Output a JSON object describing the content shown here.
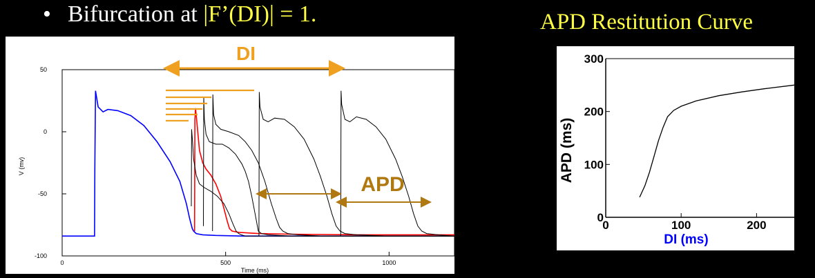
{
  "slide": {
    "bullet_glyph": "•",
    "bullet_prefix": "Bifurcation at ",
    "bullet_highlight": "|F’(DI)| = 1.",
    "right_title": "APD Restitution Curve",
    "highlight_color": "#ffff44"
  },
  "chart_data": [
    {
      "type": "line",
      "xlabel": "Time (ms)",
      "ylabel": "V (mv)",
      "xlim": [
        0,
        1200
      ],
      "ylim": [
        -100,
        50
      ],
      "xticks": [
        0,
        500,
        1000
      ],
      "yticks": [
        50,
        0,
        -50,
        -100
      ],
      "annotations": {
        "di_label": "DI",
        "apd_label": "APD",
        "di_color": "#f0a020",
        "apd_color": "#b07810"
      },
      "series": [
        {
          "color": "#0000ff",
          "x": [
            0,
            99,
            100,
            102,
            110,
            125,
            140,
            170,
            210,
            250,
            290,
            330,
            360,
            380,
            390,
            398,
            402,
            410,
            430,
            470,
            550,
            650,
            800,
            1000,
            1200
          ],
          "y": [
            -84,
            -84,
            -30,
            33,
            20,
            16,
            18,
            17,
            13,
            5,
            -8,
            -24,
            -40,
            -58,
            -70,
            -78,
            -80,
            -82,
            -83,
            -83.5,
            -84,
            -84,
            -84,
            -84,
            -84
          ]
        },
        {
          "color": "#ff0000",
          "x": [
            405,
            406,
            408,
            412,
            420,
            430,
            440,
            455,
            470,
            485,
            495,
            505,
            512,
            520,
            540,
            600,
            700,
            900,
            1200
          ],
          "y": [
            -80,
            10,
            19,
            8,
            -15,
            -25,
            -30,
            -35,
            -42,
            -52,
            -62,
            -72,
            -78,
            -80,
            -81,
            -82,
            -82.5,
            -83,
            -83
          ]
        },
        {
          "color": "#000000",
          "x": [
            395,
            396,
            398,
            402,
            410,
            420,
            435,
            455,
            475,
            495,
            510,
            522,
            532,
            540,
            548,
            560,
            600,
            700,
            900,
            1200
          ],
          "y": [
            -60,
            2,
            -5,
            -22,
            -35,
            -42,
            -45,
            -48,
            -52,
            -58,
            -66,
            -74,
            -80,
            -82,
            -83,
            -84,
            -84,
            -84,
            -84,
            -84
          ]
        },
        {
          "color": "#000000",
          "x": [
            432,
            433,
            435,
            440,
            450,
            470,
            490,
            510,
            530,
            550,
            560,
            570,
            580,
            590,
            600,
            610,
            630,
            700,
            900,
            1200
          ],
          "y": [
            -76,
            28,
            10,
            -2,
            -8,
            -10,
            -10,
            -13,
            -18,
            -26,
            -32,
            -40,
            -52,
            -66,
            -80,
            -82,
            -83,
            -84,
            -84,
            -84
          ]
        },
        {
          "color": "#000000",
          "x": [
            460,
            461,
            463,
            470,
            485,
            510,
            540,
            560,
            580,
            600,
            620,
            640,
            655,
            665,
            675,
            690,
            720,
            800,
            1000,
            1200
          ],
          "y": [
            -80,
            30,
            14,
            6,
            2,
            0,
            -3,
            -8,
            -15,
            -25,
            -40,
            -58,
            -70,
            -77,
            -80,
            -82,
            -83,
            -84,
            -84,
            -84
          ]
        },
        {
          "color": "#000000",
          "x": [
            602,
            603,
            605,
            615,
            630,
            650,
            680,
            710,
            740,
            770,
            790,
            810,
            825,
            838,
            850,
            865,
            900,
            1000,
            1200
          ],
          "y": [
            -84,
            32,
            20,
            10,
            8,
            11,
            10,
            4,
            -6,
            -22,
            -36,
            -52,
            -66,
            -76,
            -80,
            -82,
            -83,
            -84,
            -84
          ]
        },
        {
          "color": "#000000",
          "x": [
            852,
            853,
            855,
            865,
            880,
            900,
            930,
            960,
            990,
            1020,
            1040,
            1060,
            1075,
            1088,
            1100,
            1115,
            1150,
            1200
          ],
          "y": [
            -84,
            33,
            22,
            10,
            8,
            12,
            10,
            4,
            -6,
            -22,
            -36,
            -52,
            -66,
            -76,
            -80,
            -82,
            -83,
            -84
          ]
        }
      ]
    },
    {
      "type": "line",
      "xlabel": "DI (ms)",
      "ylabel": "APD (ms)",
      "xlim": [
        0,
        250
      ],
      "ylim": [
        0,
        300
      ],
      "xticks": [
        0,
        100,
        200
      ],
      "yticks": [
        0,
        100,
        200,
        300
      ],
      "xlabel_color": "#0000ff",
      "series": [
        {
          "color": "#000000",
          "x": [
            45,
            52,
            58,
            64,
            70,
            76,
            82,
            90,
            100,
            120,
            150,
            180,
            210,
            250
          ],
          "y": [
            38,
            60,
            85,
            115,
            145,
            170,
            190,
            202,
            210,
            220,
            230,
            237,
            243,
            250
          ]
        }
      ]
    }
  ]
}
